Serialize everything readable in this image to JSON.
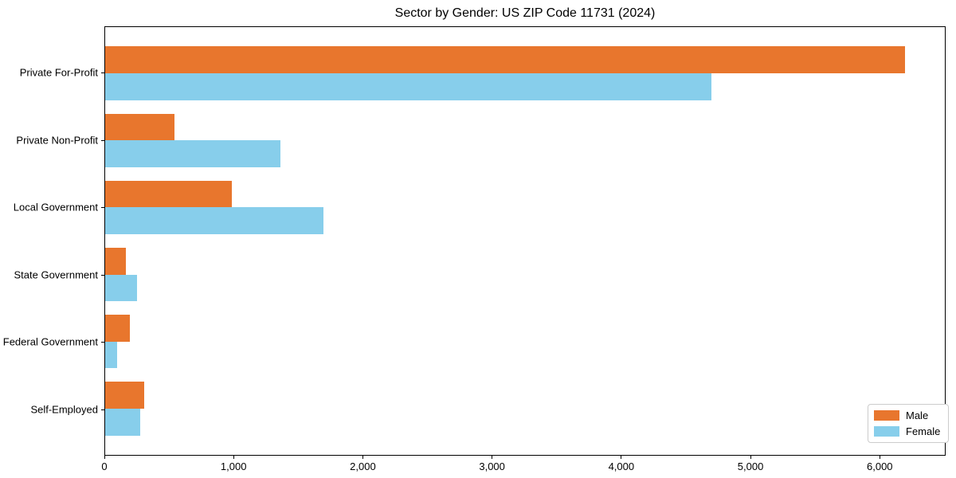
{
  "chart_data": {
    "type": "bar",
    "orientation": "horizontal",
    "title": "Sector by Gender: US ZIP Code 11731 (2024)",
    "categories": [
      "Private For-Profit",
      "Private Non-Profit",
      "Local Government",
      "State Government",
      "Federal Government",
      "Self-Employed"
    ],
    "series": [
      {
        "name": "Male",
        "color": "#e8762d",
        "values": [
          6200,
          540,
          980,
          160,
          190,
          300
        ]
      },
      {
        "name": "Female",
        "color": "#87ceeb",
        "values": [
          4700,
          1360,
          1690,
          250,
          90,
          270
        ]
      }
    ],
    "xlabel": "",
    "ylabel": "",
    "xlim": [
      0,
      6510
    ],
    "x_ticks": [
      {
        "value": 0,
        "label": "0"
      },
      {
        "value": 1000,
        "label": "1,000"
      },
      {
        "value": 2000,
        "label": "2,000"
      },
      {
        "value": 3000,
        "label": "3,000"
      },
      {
        "value": 4000,
        "label": "4,000"
      },
      {
        "value": 5000,
        "label": "5,000"
      },
      {
        "value": 6000,
        "label": "6,000"
      }
    ],
    "grid": false,
    "legend_position": "lower right",
    "bar_height_fraction": 0.4,
    "colors": {
      "spine": "#000000",
      "text": "#000000",
      "legend_border": "#cccccc",
      "background": "#ffffff"
    }
  }
}
